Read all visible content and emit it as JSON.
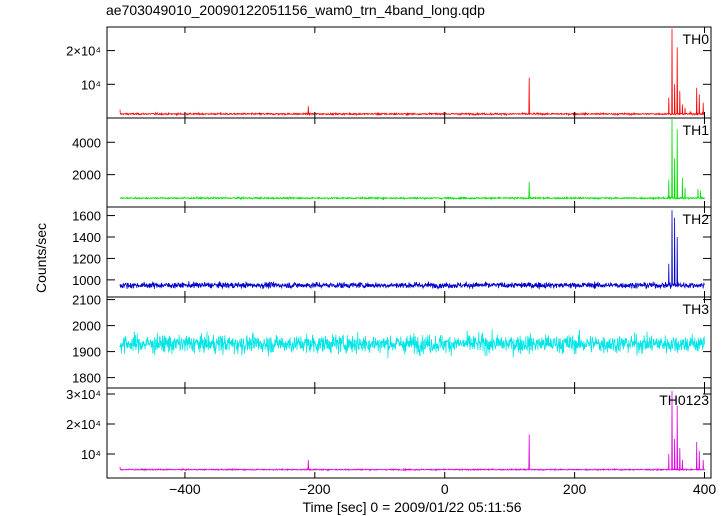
{
  "chart_data": {
    "type": "line",
    "title": "ae703049010_20090122051156_wam0_trn_4band_long.qdp",
    "xlabel": "Time [sec] 0 = 2009/01/22 05:11:56",
    "ylabel": "Counts/sec",
    "xlim": [
      -520,
      410
    ],
    "x_ticks": [
      -400,
      -200,
      0,
      200,
      400
    ],
    "x_tick_labels": [
      "−400",
      "−200",
      "0",
      "200",
      "400"
    ],
    "x_range_data": [
      -500,
      400
    ],
    "panels": [
      {
        "name": "TH0",
        "color": "#ff0000",
        "ylim": [
          0,
          27000
        ],
        "y_ticks": [
          10000,
          20000
        ],
        "y_tick_labels": [
          "10⁴",
          "2×10⁴"
        ],
        "baseline": 1200,
        "noise": 300,
        "spikes": [
          [
            -500,
            2500
          ],
          [
            -210,
            3500
          ],
          [
            130,
            12000
          ],
          [
            345,
            6000
          ],
          [
            350,
            26500
          ],
          [
            354,
            10000
          ],
          [
            358,
            21000
          ],
          [
            362,
            8000
          ],
          [
            366,
            4000
          ],
          [
            370,
            3000
          ],
          [
            378,
            2000
          ],
          [
            388,
            9000
          ],
          [
            392,
            7000
          ],
          [
            398,
            4500
          ]
        ]
      },
      {
        "name": "TH1",
        "color": "#00e000",
        "ylim": [
          0,
          5500
        ],
        "y_ticks": [
          2000,
          4000
        ],
        "y_tick_labels": [
          "2000",
          "4000"
        ],
        "baseline": 550,
        "noise": 60,
        "spikes": [
          [
            130,
            1550
          ],
          [
            345,
            1700
          ],
          [
            350,
            5500
          ],
          [
            354,
            3000
          ],
          [
            358,
            4800
          ],
          [
            366,
            1800
          ],
          [
            370,
            1200
          ],
          [
            390,
            1100
          ],
          [
            394,
            1000
          ]
        ]
      },
      {
        "name": "TH2",
        "color": "#0000cc",
        "ylim": [
          840,
          1680
        ],
        "y_ticks": [
          1000,
          1200,
          1400,
          1600
        ],
        "y_tick_labels": [
          "1000",
          "1200",
          "1400",
          "1600"
        ],
        "baseline": 950,
        "noise": 35,
        "spikes": [
          [
            345,
            1150
          ],
          [
            350,
            1650
          ],
          [
            354,
            1580
          ],
          [
            358,
            1400
          ]
        ]
      },
      {
        "name": "TH3",
        "color": "#00e5e5",
        "ylim": [
          1760,
          2110
        ],
        "y_ticks": [
          1800,
          1900,
          2000,
          2100
        ],
        "y_tick_labels": [
          "1800",
          "1900",
          "2000",
          "2100"
        ],
        "baseline": 1930,
        "noise": 45,
        "spikes": []
      },
      {
        "name": "TH0123",
        "color": "#e000e0",
        "ylim": [
          2000,
          32000
        ],
        "y_ticks": [
          10000,
          20000,
          30000
        ],
        "y_tick_labels": [
          "10⁴",
          "2×10⁴",
          "3×10⁴"
        ],
        "baseline": 4800,
        "noise": 250,
        "spikes": [
          [
            -500,
            5800
          ],
          [
            -210,
            8000
          ],
          [
            130,
            16500
          ],
          [
            345,
            10000
          ],
          [
            350,
            31000
          ],
          [
            354,
            15000
          ],
          [
            358,
            26000
          ],
          [
            362,
            12000
          ],
          [
            366,
            8000
          ],
          [
            388,
            14000
          ],
          [
            392,
            11000
          ],
          [
            398,
            8000
          ]
        ]
      }
    ]
  }
}
